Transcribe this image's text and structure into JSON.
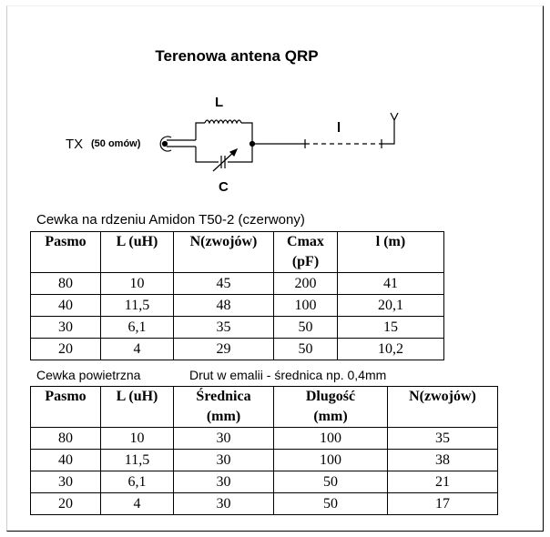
{
  "title": "Terenowa antena QRP",
  "diagram": {
    "tx_label": "TX",
    "impedance_label": "(50 omów)",
    "inductor_label": "L",
    "capacitor_label": "C",
    "length_label": "l"
  },
  "table1": {
    "caption": "Cewka na rdzeniu Amidon T50-2 (czerwony)",
    "headers": [
      [
        "Pasmo",
        ""
      ],
      [
        "L (uH)",
        ""
      ],
      [
        "N(zwojów)",
        ""
      ],
      [
        "Cmax",
        "(pF)"
      ],
      [
        "l (m)",
        ""
      ]
    ],
    "rows": [
      [
        "80",
        "10",
        "45",
        "200",
        "41"
      ],
      [
        "40",
        "11,5",
        "48",
        "100",
        "20,1"
      ],
      [
        "30",
        "6,1",
        "35",
        "50",
        "15"
      ],
      [
        "20",
        "4",
        "29",
        "50",
        "10,2"
      ]
    ]
  },
  "table2": {
    "caption": "Cewka powietrzna",
    "caption_note": "Drut w emalii - średnica np. 0,4mm",
    "headers": [
      [
        "Pasmo",
        ""
      ],
      [
        "L (uH)",
        ""
      ],
      [
        "Średnica",
        "(mm)"
      ],
      [
        "Dlugość",
        "(mm)"
      ],
      [
        "N(zwojów)",
        ""
      ]
    ],
    "rows": [
      [
        "80",
        "10",
        "30",
        "100",
        "35"
      ],
      [
        "40",
        "11,5",
        "30",
        "100",
        "38"
      ],
      [
        "30",
        "6,1",
        "30",
        "50",
        "21"
      ],
      [
        "20",
        "4",
        "30",
        "50",
        "17"
      ]
    ]
  }
}
